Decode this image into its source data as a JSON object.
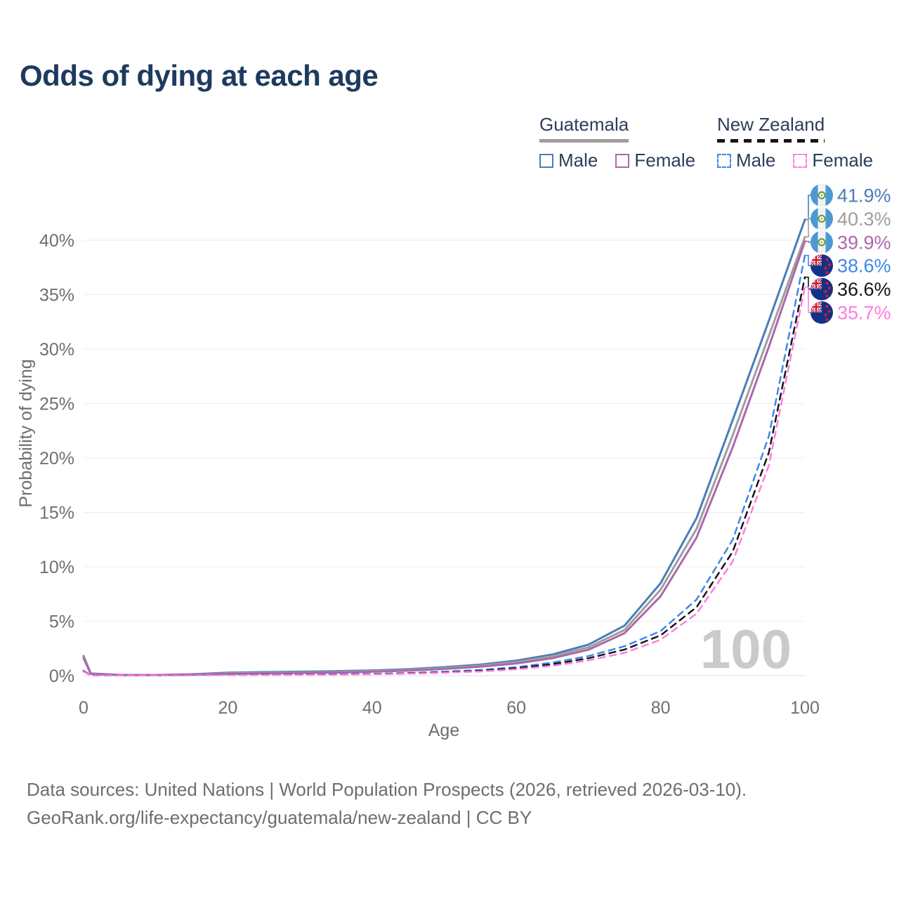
{
  "chart_data": {
    "type": "line",
    "title": "Odds of dying at each age",
    "xlabel": "Age",
    "ylabel": "Probability of dying",
    "xlim": [
      0,
      100
    ],
    "ylim_percent": [
      0,
      44
    ],
    "x_ticks": [
      0,
      20,
      40,
      60,
      80,
      100
    ],
    "y_ticks_percent": [
      0,
      5,
      10,
      15,
      20,
      25,
      30,
      35,
      40
    ],
    "grid": "horizontal-only",
    "age_indicator": "100",
    "x": [
      0,
      1,
      5,
      10,
      15,
      20,
      25,
      30,
      35,
      40,
      45,
      50,
      55,
      60,
      65,
      70,
      75,
      80,
      85,
      90,
      95,
      100
    ],
    "series": [
      {
        "id": "guatemala-male",
        "name": "Guatemala Male",
        "country": "Guatemala",
        "sex": "Male",
        "color": "#4a7db9",
        "dashed": false,
        "end_label": "41.9%",
        "flag": "gt",
        "values": [
          1.8,
          0.2,
          0.07,
          0.06,
          0.13,
          0.28,
          0.33,
          0.36,
          0.41,
          0.48,
          0.6,
          0.78,
          1.02,
          1.38,
          1.95,
          2.85,
          4.6,
          8.5,
          14.5,
          23.5,
          32.6,
          41.9
        ]
      },
      {
        "id": "guatemala-all",
        "name": "Guatemala",
        "country": "Guatemala",
        "sex": "All",
        "color": "#9e9e9e",
        "dashed": false,
        "end_label": "40.3%",
        "flag": "gt",
        "values": [
          1.7,
          0.18,
          0.06,
          0.05,
          0.1,
          0.22,
          0.27,
          0.3,
          0.34,
          0.42,
          0.53,
          0.69,
          0.92,
          1.25,
          1.78,
          2.6,
          4.2,
          7.9,
          13.5,
          22.1,
          31.2,
          40.3
        ]
      },
      {
        "id": "guatemala-female",
        "name": "Guatemala Female",
        "country": "Guatemala",
        "sex": "Female",
        "color": "#ab68ac",
        "dashed": false,
        "end_label": "39.9%",
        "flag": "gt",
        "values": [
          1.6,
          0.16,
          0.05,
          0.05,
          0.08,
          0.15,
          0.2,
          0.24,
          0.28,
          0.36,
          0.46,
          0.61,
          0.82,
          1.12,
          1.6,
          2.38,
          3.9,
          7.3,
          12.7,
          21.0,
          30.2,
          39.9
        ]
      },
      {
        "id": "new-zealand-male",
        "name": "New Zealand Male",
        "country": "New Zealand",
        "sex": "Male",
        "color": "#3f87ea",
        "dashed": true,
        "end_label": "38.6%",
        "flag": "nz",
        "values": [
          0.45,
          0.04,
          0.01,
          0.01,
          0.05,
          0.09,
          0.1,
          0.11,
          0.13,
          0.17,
          0.24,
          0.36,
          0.52,
          0.78,
          1.2,
          1.8,
          2.7,
          4.1,
          7.0,
          12.5,
          22.0,
          38.6
        ]
      },
      {
        "id": "new-zealand-all",
        "name": "New Zealand",
        "country": "New Zealand",
        "sex": "All",
        "color": "#161616",
        "dashed": true,
        "end_label": "36.6%",
        "flag": "nz",
        "values": [
          0.4,
          0.04,
          0.01,
          0.01,
          0.04,
          0.07,
          0.08,
          0.09,
          0.11,
          0.15,
          0.21,
          0.31,
          0.45,
          0.68,
          1.05,
          1.6,
          2.4,
          3.7,
          6.3,
          11.4,
          20.5,
          36.6
        ]
      },
      {
        "id": "new-zealand-female",
        "name": "New Zealand Female",
        "country": "New Zealand",
        "sex": "Female",
        "color": "#ff7ce2",
        "dashed": true,
        "end_label": "35.7%",
        "flag": "nz",
        "values": [
          0.37,
          0.03,
          0.01,
          0.01,
          0.03,
          0.05,
          0.06,
          0.07,
          0.09,
          0.13,
          0.18,
          0.27,
          0.39,
          0.58,
          0.9,
          1.4,
          2.1,
          3.3,
          5.7,
          10.5,
          19.3,
          35.7
        ]
      }
    ]
  },
  "legend": {
    "groups": [
      {
        "label": "Guatemala",
        "dashed": false,
        "line_color": "#9e9e9e",
        "items": [
          {
            "label": "Male",
            "color": "#4a7db9"
          },
          {
            "label": "Female",
            "color": "#ab68ac"
          }
        ]
      },
      {
        "label": "New Zealand",
        "dashed": true,
        "line_color": "#161616",
        "items": [
          {
            "label": "Male",
            "color": "#3f87ea"
          },
          {
            "label": "Female",
            "color": "#ff7ce2"
          }
        ]
      }
    ]
  },
  "footer": {
    "line1": "Data sources: United Nations | World Population Prospects (2026, retrieved 2026-03-10).",
    "line2": "GeoRank.org/life-expectancy/guatemala/new-zealand | CC BY"
  },
  "colors": {
    "title": "#1e3a5f",
    "legend_text": "#2c3e5a",
    "axis_text": "#6f6f6f",
    "gridline": "#ececec",
    "watermark": "#cacaca",
    "guatemala_flag_blue": "#4b98d2",
    "new_zealand_flag_navy": "#123288",
    "new_zealand_flag_red": "#cf1831"
  }
}
